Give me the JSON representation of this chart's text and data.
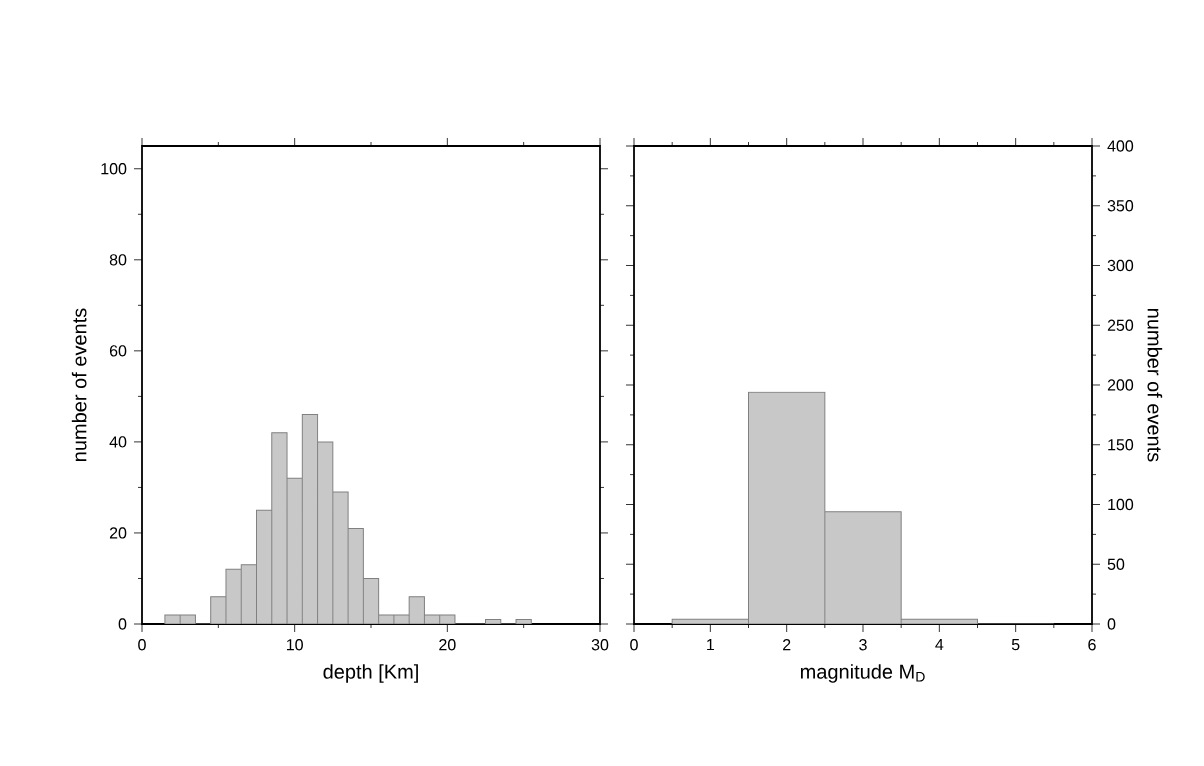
{
  "chart_data": [
    {
      "type": "histogram",
      "xlabel": "depth [Km]",
      "ylabel": "number of events",
      "color": "#c8c8c8",
      "bins": [
        1.5,
        2.5,
        3.5,
        4.5,
        5.5,
        6.5,
        7.5,
        8.5,
        9.5,
        10.5,
        11.5,
        12.5,
        13.5,
        14.5,
        15.5,
        16.5,
        17.5,
        18.5,
        19.5,
        20.5,
        21.5,
        22.5,
        23.5,
        24.5,
        25.5
      ],
      "values": [
        2,
        2,
        0,
        6,
        12,
        13,
        25,
        42,
        32,
        46,
        40,
        29,
        21,
        10,
        2,
        2,
        6,
        2,
        2,
        0,
        0,
        1,
        0,
        1
      ],
      "xlim": [
        0,
        30
      ],
      "xticks": [
        0,
        10,
        20,
        30
      ],
      "ylim": [
        0,
        105
      ],
      "yticks": [
        0,
        20,
        40,
        60,
        80,
        100
      ]
    },
    {
      "type": "histogram",
      "xlabel": "magnitude M$_{D}$",
      "ylabel": "number of events",
      "color": "#c8c8c8",
      "bins": [
        0.5,
        1.5,
        2.5,
        3.5,
        4.5,
        5.5
      ],
      "values": [
        4,
        194,
        94,
        4,
        0
      ],
      "xlim": [
        0,
        6
      ],
      "xticks": [
        0,
        1,
        2,
        3,
        4,
        5,
        6
      ],
      "ylim": [
        0,
        400
      ],
      "yticks": [
        0,
        50,
        100,
        150,
        200,
        250,
        300,
        350,
        400
      ]
    }
  ]
}
